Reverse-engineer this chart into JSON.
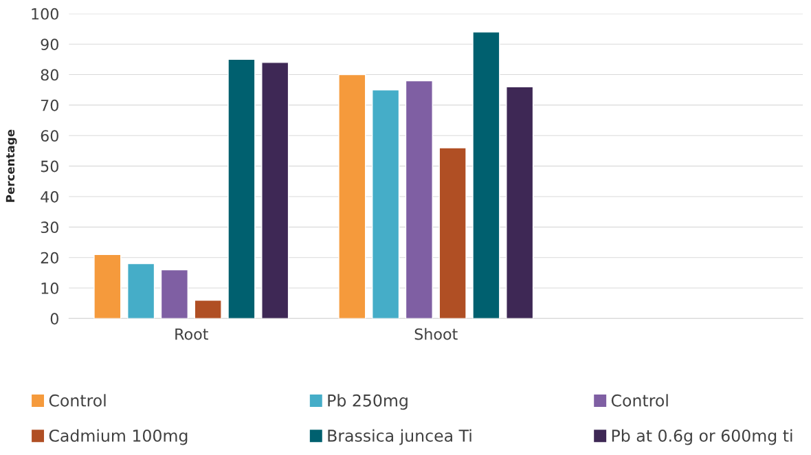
{
  "chart_data": {
    "type": "bar",
    "ylabel": "Percentage",
    "categories": [
      "Root",
      "Shoot",
      null
    ],
    "series": [
      {
        "name": "Control",
        "color": "#f59a3c",
        "values": [
          21,
          80,
          null
        ]
      },
      {
        "name": "Pb 250mg",
        "color": "#45adc8",
        "values": [
          18,
          75,
          null
        ]
      },
      {
        "name": "Control",
        "color": "#7f5fa3",
        "values": [
          16,
          78,
          null
        ]
      },
      {
        "name": "Cadmium 100mg",
        "color": "#b04f24",
        "values": [
          6,
          56,
          null
        ]
      },
      {
        "name": "Brassica juncea Ti",
        "color": "#00606f",
        "values": [
          85,
          94,
          null
        ]
      },
      {
        "name": "Pb at 0.6g or 600mg ti",
        "color": "#3e2855",
        "values": [
          84,
          76,
          null
        ]
      }
    ],
    "ylim": [
      0,
      100
    ],
    "yticks": [
      0,
      10,
      20,
      30,
      40,
      50,
      60,
      70,
      80,
      90,
      100
    ],
    "grid": "y",
    "legend": "bottom"
  }
}
